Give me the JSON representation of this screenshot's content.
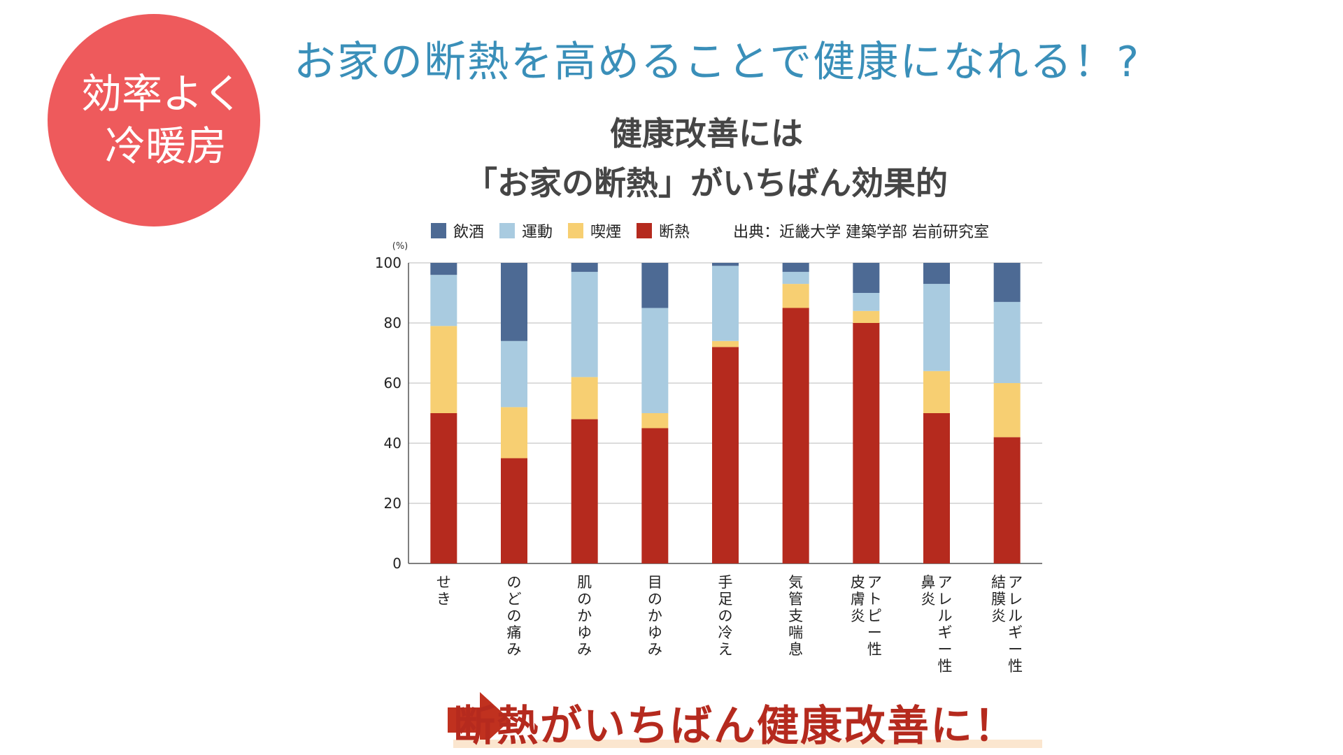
{
  "badge": {
    "line1": "効率よく",
    "line2": "冷暖房"
  },
  "headline": "お家の断熱を高めることで健康になれる！?",
  "chart_header": {
    "line1": "健康改善には",
    "line2": "「お家の断熱」がいちばん効果的"
  },
  "source": "出典：近畿大学 建築学部 岩前研究室",
  "conclusion": "断熱がいちばん健康改善に！",
  "colors": {
    "badge": "#ee5a5c",
    "headline": "#3a8fb9",
    "conclusion": "#b52a1e",
    "arrow": "#c0311f"
  },
  "chart_data": {
    "type": "bar",
    "stacked": true,
    "unit": "(%)",
    "ylim": [
      0,
      100
    ],
    "yticks": [
      0,
      20,
      40,
      60,
      80,
      100
    ],
    "categories": [
      "せき",
      "のどの痛み",
      "肌のかゆみ",
      "目のかゆみ",
      "手足の冷え",
      "気管支喘息",
      "アトピー性皮膚炎",
      "アレルギー性鼻炎",
      "アレルギー性結膜炎"
    ],
    "category_lines": [
      [
        "せき"
      ],
      [
        "のどの痛み"
      ],
      [
        "肌のかゆみ"
      ],
      [
        "目のかゆみ"
      ],
      [
        "手足の冷え"
      ],
      [
        "気管支喘息"
      ],
      [
        "アトピー性",
        "皮膚炎"
      ],
      [
        "アレルギー性",
        "鼻炎"
      ],
      [
        "アレルギー性",
        "結膜炎"
      ]
    ],
    "series": [
      {
        "name": "断熱",
        "color": "#b52a1e",
        "values": [
          50,
          35,
          48,
          45,
          72,
          85,
          80,
          50,
          42
        ]
      },
      {
        "name": "喫煙",
        "color": "#f7cf72",
        "values": [
          29,
          17,
          14,
          5,
          2,
          8,
          4,
          14,
          18
        ]
      },
      {
        "name": "運動",
        "color": "#a9cbe0",
        "values": [
          17,
          22,
          35,
          35,
          25,
          4,
          6,
          29,
          27
        ]
      },
      {
        "name": "飲酒",
        "color": "#4d6a94",
        "values": [
          4,
          26,
          3,
          15,
          1,
          3,
          10,
          7,
          13
        ]
      }
    ],
    "legend_order": [
      "飲酒",
      "運動",
      "喫煙",
      "断熱"
    ],
    "grid": true
  }
}
